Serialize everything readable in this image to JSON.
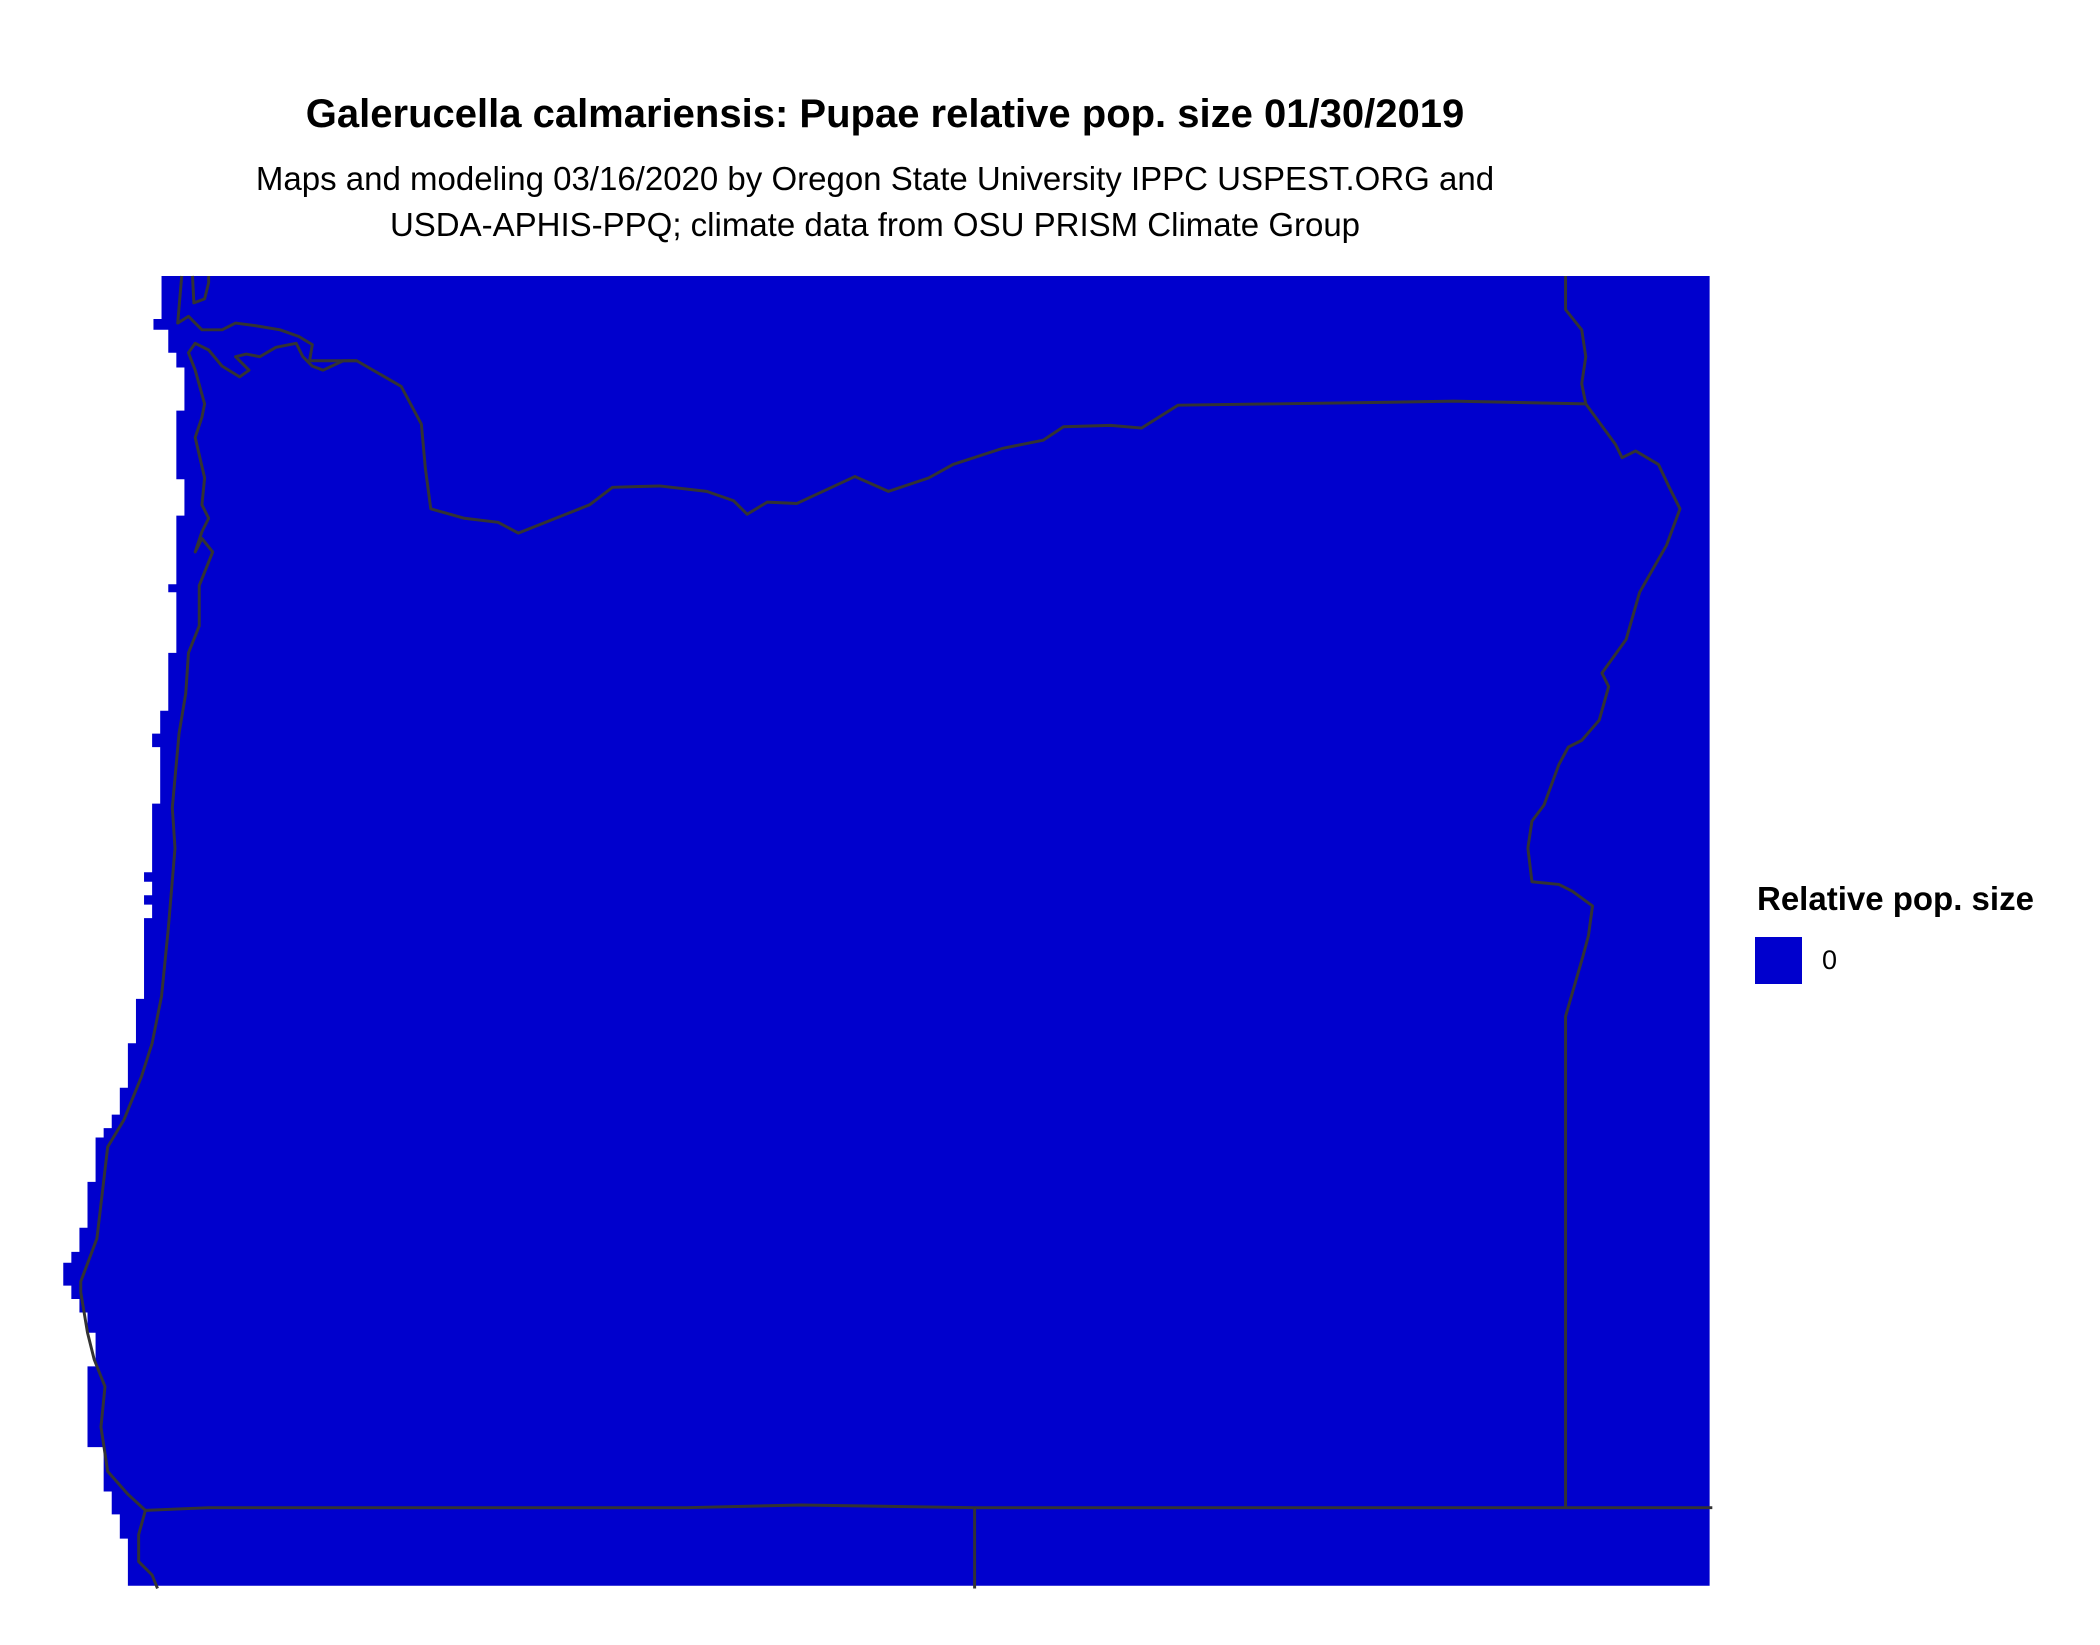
{
  "title": "Galerucella calmariensis: Pupae relative pop. size 01/30/2019",
  "subtitle_line1": "Maps and modeling 03/16/2020 by Oregon State University IPPC USPEST.ORG and",
  "subtitle_line2": "USDA-APHIS-PPQ; climate data from OSU PRISM Climate Group",
  "legend": {
    "title": "Relative pop. size",
    "items": [
      {
        "label": "0",
        "color": "#0000CD"
      }
    ]
  },
  "colors": {
    "fill": "#0000CD",
    "border": "#333333"
  }
}
